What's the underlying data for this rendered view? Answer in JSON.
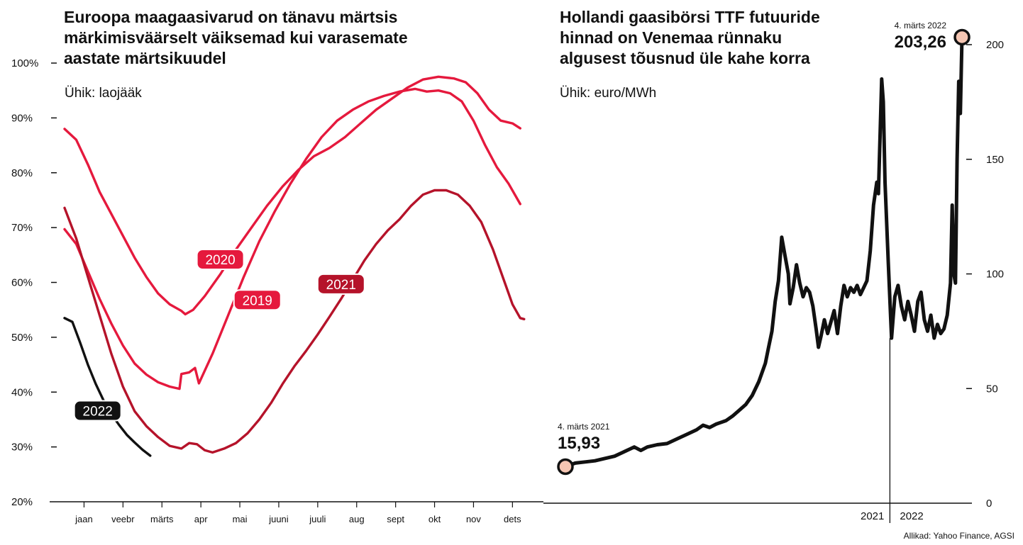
{
  "source": "Allikad: Yahoo Finance, AGSI",
  "chart_data": [
    {
      "type": "line",
      "title_lines": [
        "Euroopa maagaasivarud on tänavu märtsis",
        "märkimisväärselt väiksemad kui varasemate",
        "aastate märtsikuudel"
      ],
      "unit": "Ühik: laojääk",
      "y_ticks": [
        "100%",
        "90%",
        "80%",
        "70%",
        "60%",
        "50%",
        "40%",
        "30%",
        "20%"
      ],
      "ylim": [
        20,
        100
      ],
      "x_tick_labels": [
        "jaan",
        "veebr",
        "märts",
        "apr",
        "mai",
        "juuni",
        "juuli",
        "aug",
        "sept",
        "okt",
        "nov",
        "dets"
      ],
      "x_unit": "month (0 = start of jaan, 12 = end of dets)",
      "series": [
        {
          "name": "2019",
          "color": "#e5193d",
          "points": [
            [
              0,
              69.7
            ],
            [
              0.3,
              67
            ],
            [
              0.6,
              62
            ],
            [
              0.9,
              57
            ],
            [
              1.2,
              52.5
            ],
            [
              1.5,
              48.5
            ],
            [
              1.8,
              45.2
            ],
            [
              2.1,
              43.2
            ],
            [
              2.4,
              41.8
            ],
            [
              2.7,
              41
            ],
            [
              2.95,
              40.6
            ],
            [
              3.0,
              43.3
            ],
            [
              3.2,
              43.6
            ],
            [
              3.35,
              44.4
            ],
            [
              3.45,
              41.6
            ],
            [
              3.8,
              47
            ],
            [
              4.2,
              54
            ],
            [
              4.6,
              61
            ],
            [
              5.0,
              67.5
            ],
            [
              5.4,
              73
            ],
            [
              5.8,
              78
            ],
            [
              6.2,
              82.5
            ],
            [
              6.6,
              86.5
            ],
            [
              7.0,
              89.5
            ],
            [
              7.4,
              91.5
            ],
            [
              7.8,
              93
            ],
            [
              8.2,
              94
            ],
            [
              8.6,
              94.8
            ],
            [
              9.0,
              95.3
            ],
            [
              9.3,
              94.8
            ],
            [
              9.6,
              95
            ],
            [
              9.9,
              94.5
            ],
            [
              10.2,
              93
            ],
            [
              10.5,
              89.5
            ],
            [
              10.8,
              85
            ],
            [
              11.1,
              81
            ],
            [
              11.4,
              78
            ],
            [
              11.7,
              74.3
            ]
          ]
        },
        {
          "name": "2020",
          "color": "#e5193d",
          "points": [
            [
              0,
              88
            ],
            [
              0.3,
              86
            ],
            [
              0.6,
              81.5
            ],
            [
              0.9,
              76.5
            ],
            [
              1.2,
              72.5
            ],
            [
              1.5,
              68.5
            ],
            [
              1.8,
              64.5
            ],
            [
              2.1,
              61
            ],
            [
              2.4,
              58
            ],
            [
              2.7,
              56
            ],
            [
              3.0,
              54.8
            ],
            [
              3.1,
              54.2
            ],
            [
              3.3,
              55
            ],
            [
              3.6,
              57.5
            ],
            [
              4.0,
              61.5
            ],
            [
              4.4,
              66
            ],
            [
              4.8,
              70
            ],
            [
              5.2,
              74
            ],
            [
              5.6,
              77.5
            ],
            [
              6.0,
              80.5
            ],
            [
              6.4,
              83
            ],
            [
              6.8,
              84.5
            ],
            [
              7.2,
              86.5
            ],
            [
              7.6,
              89
            ],
            [
              8.0,
              91.5
            ],
            [
              8.4,
              93.5
            ],
            [
              8.8,
              95.5
            ],
            [
              9.2,
              97
            ],
            [
              9.6,
              97.5
            ],
            [
              10.0,
              97.2
            ],
            [
              10.3,
              96.5
            ],
            [
              10.6,
              94.5
            ],
            [
              10.9,
              91.5
            ],
            [
              11.2,
              89.5
            ],
            [
              11.5,
              89
            ],
            [
              11.7,
              88.1
            ]
          ]
        },
        {
          "name": "2021",
          "color": "#b5132a",
          "points": [
            [
              0,
              73.6
            ],
            [
              0.3,
              68
            ],
            [
              0.6,
              61
            ],
            [
              0.9,
              54
            ],
            [
              1.2,
              47
            ],
            [
              1.5,
              41
            ],
            [
              1.8,
              36.5
            ],
            [
              2.1,
              33.8
            ],
            [
              2.4,
              31.8
            ],
            [
              2.7,
              30.2
            ],
            [
              3.0,
              29.7
            ],
            [
              3.2,
              30.7
            ],
            [
              3.4,
              30.5
            ],
            [
              3.6,
              29.4
            ],
            [
              3.8,
              29
            ],
            [
              4.1,
              29.7
            ],
            [
              4.4,
              30.7
            ],
            [
              4.7,
              32.5
            ],
            [
              5.0,
              35
            ],
            [
              5.3,
              38
            ],
            [
              5.6,
              41.5
            ],
            [
              5.9,
              44.7
            ],
            [
              6.2,
              47.5
            ],
            [
              6.5,
              50.5
            ],
            [
              6.8,
              53.7
            ],
            [
              7.1,
              57
            ],
            [
              7.4,
              60.5
            ],
            [
              7.7,
              64
            ],
            [
              8.0,
              67
            ],
            [
              8.3,
              69.5
            ],
            [
              8.6,
              71.5
            ],
            [
              8.9,
              74
            ],
            [
              9.2,
              76
            ],
            [
              9.5,
              76.8
            ],
            [
              9.8,
              76.8
            ],
            [
              10.1,
              76
            ],
            [
              10.4,
              74
            ],
            [
              10.7,
              71
            ],
            [
              11.0,
              66
            ],
            [
              11.3,
              60
            ],
            [
              11.5,
              56
            ],
            [
              11.7,
              53.5
            ],
            [
              11.8,
              53.3
            ]
          ]
        },
        {
          "name": "2022",
          "color": "#111111",
          "points": [
            [
              0,
              53.5
            ],
            [
              0.2,
              52.8
            ],
            [
              0.4,
              49
            ],
            [
              0.6,
              45
            ],
            [
              0.8,
              41.5
            ],
            [
              1.0,
              38.5
            ],
            [
              1.2,
              36
            ],
            [
              1.4,
              34
            ],
            [
              1.6,
              32.2
            ],
            [
              1.8,
              30.8
            ],
            [
              2.0,
              29.5
            ],
            [
              2.2,
              28.4
            ]
          ]
        }
      ]
    },
    {
      "type": "line",
      "title_lines": [
        "Hollandi gaasibörsi TTF futuuride",
        "hinnad on Venemaa rünnaku",
        "algusest tõusnud üle kahe korra"
      ],
      "unit": "Ühik: euro/MWh",
      "y_ticks": [
        "200",
        "150",
        "100",
        "50",
        "0"
      ],
      "ylim": [
        0,
        200
      ],
      "x_tick_labels": [
        "2021",
        "2022"
      ],
      "x_unit": "month index (0 = 4. märts 2021, 12 = 4. märts 2022)",
      "year_divider_x": 9.9,
      "annotations": [
        {
          "date": "4. märts 2021",
          "value": "15,93"
        },
        {
          "date": "4. märts 2022",
          "value": "203,26"
        }
      ],
      "series": [
        {
          "name": "TTF",
          "color": "#111111",
          "points": [
            [
              0,
              15.93
            ],
            [
              0.3,
              17.5
            ],
            [
              0.6,
              18
            ],
            [
              0.9,
              18.5
            ],
            [
              1.2,
              19.5
            ],
            [
              1.5,
              20.5
            ],
            [
              1.8,
              22.5
            ],
            [
              2.1,
              24.5
            ],
            [
              2.3,
              23
            ],
            [
              2.5,
              24.5
            ],
            [
              2.8,
              25.5
            ],
            [
              3.1,
              26
            ],
            [
              3.4,
              28
            ],
            [
              3.7,
              30
            ],
            [
              4.0,
              32
            ],
            [
              4.2,
              34
            ],
            [
              4.4,
              33
            ],
            [
              4.6,
              34.5
            ],
            [
              4.9,
              36
            ],
            [
              5.1,
              38
            ],
            [
              5.3,
              40.5
            ],
            [
              5.5,
              43
            ],
            [
              5.7,
              47
            ],
            [
              5.9,
              53
            ],
            [
              6.1,
              61
            ],
            [
              6.2,
              68
            ],
            [
              6.3,
              75
            ],
            [
              6.4,
              88
            ],
            [
              6.5,
              97
            ],
            [
              6.6,
              116
            ],
            [
              6.7,
              108
            ],
            [
              6.8,
              100
            ],
            [
              6.85,
              87
            ],
            [
              6.95,
              94
            ],
            [
              7.05,
              104
            ],
            [
              7.15,
              96
            ],
            [
              7.25,
              90
            ],
            [
              7.35,
              94
            ],
            [
              7.45,
              92
            ],
            [
              7.55,
              86
            ],
            [
              7.65,
              76
            ],
            [
              7.72,
              68
            ],
            [
              7.8,
              73
            ],
            [
              7.9,
              80
            ],
            [
              8.0,
              74
            ],
            [
              8.1,
              79
            ],
            [
              8.2,
              84
            ],
            [
              8.3,
              74
            ],
            [
              8.4,
              86
            ],
            [
              8.5,
              95
            ],
            [
              8.6,
              90
            ],
            [
              8.7,
              94
            ],
            [
              8.8,
              92
            ],
            [
              8.9,
              95
            ],
            [
              9.0,
              91
            ],
            [
              9.1,
              94
            ],
            [
              9.2,
              97
            ],
            [
              9.3,
              110
            ],
            [
              9.4,
              130
            ],
            [
              9.5,
              140
            ],
            [
              9.55,
              135
            ],
            [
              9.6,
              160
            ],
            [
              9.65,
              185
            ],
            [
              9.7,
              175
            ],
            [
              9.75,
              140
            ],
            [
              9.85,
              105
            ],
            [
              9.95,
              72
            ],
            [
              10.05,
              90
            ],
            [
              10.15,
              95
            ],
            [
              10.25,
              86
            ],
            [
              10.35,
              80
            ],
            [
              10.45,
              88
            ],
            [
              10.55,
              82
            ],
            [
              10.65,
              75
            ],
            [
              10.75,
              88
            ],
            [
              10.85,
              92
            ],
            [
              10.95,
              80
            ],
            [
              11.05,
              75
            ],
            [
              11.15,
              82
            ],
            [
              11.25,
              72
            ],
            [
              11.35,
              78
            ],
            [
              11.45,
              74
            ],
            [
              11.55,
              76
            ],
            [
              11.65,
              82
            ],
            [
              11.75,
              96
            ],
            [
              11.8,
              130
            ],
            [
              11.85,
              100
            ],
            [
              11.9,
              96
            ],
            [
              11.95,
              150
            ],
            [
              12.0,
              184
            ],
            [
              12.05,
              170
            ],
            [
              12.1,
              203.26
            ]
          ]
        }
      ]
    }
  ]
}
